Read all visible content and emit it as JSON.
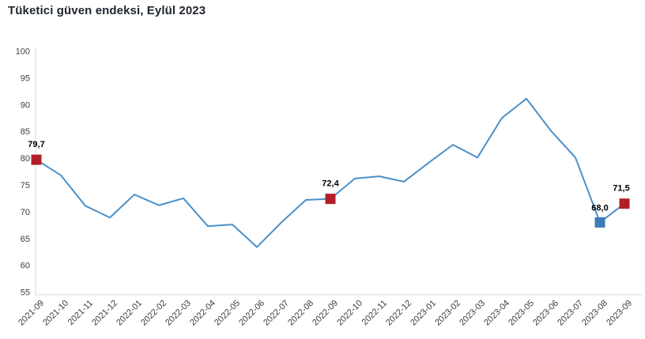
{
  "title": "Tüketici güven endeksi, Eylül 2023",
  "chart_data": {
    "type": "line",
    "title": "Tüketici güven endeksi, Eylül 2023",
    "x": [
      "2021-09",
      "2021-10",
      "2021-11",
      "2021-12",
      "2022-01",
      "2022-02",
      "2022-03",
      "2022-04",
      "2022-05",
      "2022-06",
      "2022-07",
      "2022-08",
      "2022-09",
      "2022-10",
      "2022-11",
      "2022-12",
      "2023-01",
      "2023-02",
      "2023-03",
      "2023-04",
      "2023-05",
      "2023-06",
      "2023-07",
      "2023-08",
      "2023-09"
    ],
    "series": [
      {
        "name": "Tüketici güven endeksi",
        "values": [
          79.7,
          76.8,
          71.1,
          68.9,
          73.2,
          71.2,
          72.5,
          67.3,
          67.6,
          63.4,
          68.0,
          72.2,
          72.4,
          76.2,
          76.6,
          75.6,
          79.1,
          82.5,
          80.1,
          87.5,
          91.1,
          85.1,
          80.1,
          68.0,
          71.5
        ]
      }
    ],
    "xlabel": "",
    "ylabel": "",
    "ylim": [
      55,
      100
    ],
    "y_ticks": [
      100,
      95,
      90,
      85,
      80,
      75,
      70,
      65,
      60,
      55
    ],
    "grid": false,
    "legend": false,
    "annotations": [
      {
        "index": 0,
        "label": "79,7",
        "marker": "square",
        "color": "#b21e28"
      },
      {
        "index": 12,
        "label": "72,4",
        "marker": "square",
        "color": "#b21e28"
      },
      {
        "index": 23,
        "label": "68,0",
        "marker": "square",
        "color": "#3d7cb8"
      },
      {
        "index": 24,
        "label": "71,5",
        "marker": "square",
        "color": "#b21e28"
      }
    ],
    "colors": {
      "line": "#4a90c9",
      "marker_red": "#b21e28",
      "marker_blue": "#3d7cb8",
      "axis_line": "#d9d9d9",
      "tick_label": "#3d3d3d",
      "data_label": "#000000",
      "title": "#1f2430"
    }
  }
}
